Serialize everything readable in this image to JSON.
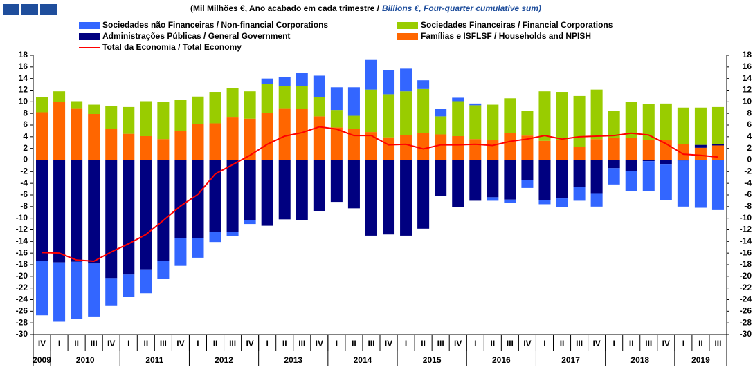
{
  "chart_data": {
    "type": "bar",
    "stacked": true,
    "title": "(Mil Milhões €, Ano acabado em cada trimestre /",
    "title_en": "Billions €, Four-quarter cumulative sum)",
    "categories": [
      "IV",
      "I",
      "II",
      "III",
      "IV",
      "I",
      "II",
      "III",
      "IV",
      "I",
      "II",
      "III",
      "IV",
      "I",
      "II",
      "III",
      "IV",
      "I",
      "II",
      "III",
      "IV",
      "I",
      "II",
      "III",
      "IV",
      "I",
      "II",
      "III",
      "IV",
      "I",
      "II",
      "III",
      "IV",
      "I",
      "II",
      "III",
      "IV",
      "I",
      "II",
      "III"
    ],
    "category_years": [
      "2009",
      "2010",
      "2010",
      "2010",
      "2010",
      "2011",
      "2011",
      "2011",
      "2011",
      "2012",
      "2012",
      "2012",
      "2012",
      "2013",
      "2013",
      "2013",
      "2013",
      "2014",
      "2014",
      "2014",
      "2014",
      "2015",
      "2015",
      "2015",
      "2015",
      "2016",
      "2016",
      "2016",
      "2016",
      "2017",
      "2017",
      "2017",
      "2017",
      "2018",
      "2018",
      "2018",
      "2018",
      "2019",
      "2019",
      "2019"
    ],
    "series": [
      {
        "name": "Famílias e ISFLSF / Households and NPISH",
        "color": "#ff6600",
        "values": [
          8.2,
          10,
          8.9,
          7.9,
          5.4,
          4.5,
          4.1,
          3.6,
          5,
          6.2,
          6.3,
          7.3,
          7.1,
          8.1,
          8.9,
          8.8,
          7.5,
          5.6,
          5.3,
          4.8,
          3.9,
          4.3,
          4.6,
          4.4,
          4.1,
          3.6,
          3.5,
          4.6,
          4.2,
          3.3,
          3.4,
          2.3,
          3.6,
          3.8,
          3.8,
          3.4,
          3.5,
          2.7,
          2.1,
          2.5
        ]
      },
      {
        "name": "Administrações Públicas / General Government",
        "color": "#000080",
        "values": [
          -17.3,
          -17.6,
          -17.5,
          -17.8,
          -20.3,
          -19.7,
          -18.8,
          -17.3,
          -13.4,
          -13.4,
          -12.3,
          -12.3,
          -10.3,
          -11.3,
          -10.2,
          -10.3,
          -8.8,
          -7.2,
          -8.3,
          -13,
          -12.8,
          -13,
          -11.8,
          -6.2,
          -8.1,
          -7,
          -6.4,
          -6.8,
          -3.5,
          -6.9,
          -6.6,
          -4.6,
          -5.7,
          -1.4,
          -1.9,
          -0.2,
          -0.8,
          -0.1,
          0.5,
          0.2
        ]
      },
      {
        "name": "Sociedades Financeiras / Financial Corporations",
        "color": "#99cc00",
        "values": [
          2.6,
          1.8,
          1.2,
          1.6,
          3.9,
          4.6,
          6,
          6.4,
          5.3,
          4.7,
          5.4,
          5,
          4.7,
          5,
          3.8,
          3.9,
          3.3,
          3,
          2.3,
          7.3,
          7.4,
          7.5,
          7.6,
          3.1,
          6,
          5.8,
          6,
          6,
          4.2,
          8.5,
          8.3,
          8.7,
          8.5,
          4.6,
          6.2,
          6.2,
          6.2,
          6.3,
          6.4,
          6.4
        ]
      },
      {
        "name": "Sociedades não Financeiras / Non-financial Corporations",
        "color": "#3366ff",
        "values": [
          -9.4,
          -10.2,
          -9.8,
          -9.1,
          -4.8,
          -3.8,
          -4.1,
          -3.1,
          -4.8,
          -3.4,
          -1.8,
          -0.8,
          -0.7,
          0.9,
          1.6,
          2.3,
          3.7,
          3.9,
          4.9,
          5.1,
          4.1,
          3.9,
          1.5,
          1.3,
          0.6,
          0.3,
          -0.6,
          -0.6,
          -1.3,
          -0.7,
          -1.5,
          -2.4,
          -2.3,
          -2.8,
          -3.5,
          -5.1,
          -6.1,
          -7.9,
          -8.2,
          -8.6
        ]
      },
      {
        "name": "Total da Economia / Total Economy",
        "color": "#ff0000",
        "type": "line",
        "values": [
          -15.9,
          -16,
          -17.2,
          -17.4,
          -15.8,
          -14.4,
          -12.8,
          -10.4,
          -7.9,
          -5.9,
          -2.4,
          -0.8,
          0.8,
          2.7,
          4.1,
          4.7,
          5.7,
          5.3,
          4.2,
          4.2,
          2.6,
          2.7,
          1.9,
          2.6,
          2.6,
          2.7,
          2.5,
          3.2,
          3.6,
          4.2,
          3.6,
          4,
          4.1,
          4.2,
          4.6,
          4.3,
          2.8,
          1,
          0.8,
          0.5
        ]
      }
    ],
    "ylim": [
      -30,
      18
    ],
    "yticks": [
      -30,
      -28,
      -26,
      -24,
      -22,
      -20,
      -18,
      -16,
      -14,
      -12,
      -10,
      -8,
      -6,
      -4,
      -2,
      0,
      2,
      4,
      6,
      8,
      10,
      12,
      14,
      16,
      18
    ],
    "y2lim": [
      -30,
      18
    ],
    "y2ticks": [
      -30,
      -28,
      -26,
      -24,
      -22,
      -20,
      -18,
      -16,
      -14,
      -12,
      -10,
      -8,
      -6,
      -4,
      -2,
      0,
      2,
      4,
      6,
      8,
      10,
      12,
      14,
      16,
      18
    ],
    "grid": false
  }
}
